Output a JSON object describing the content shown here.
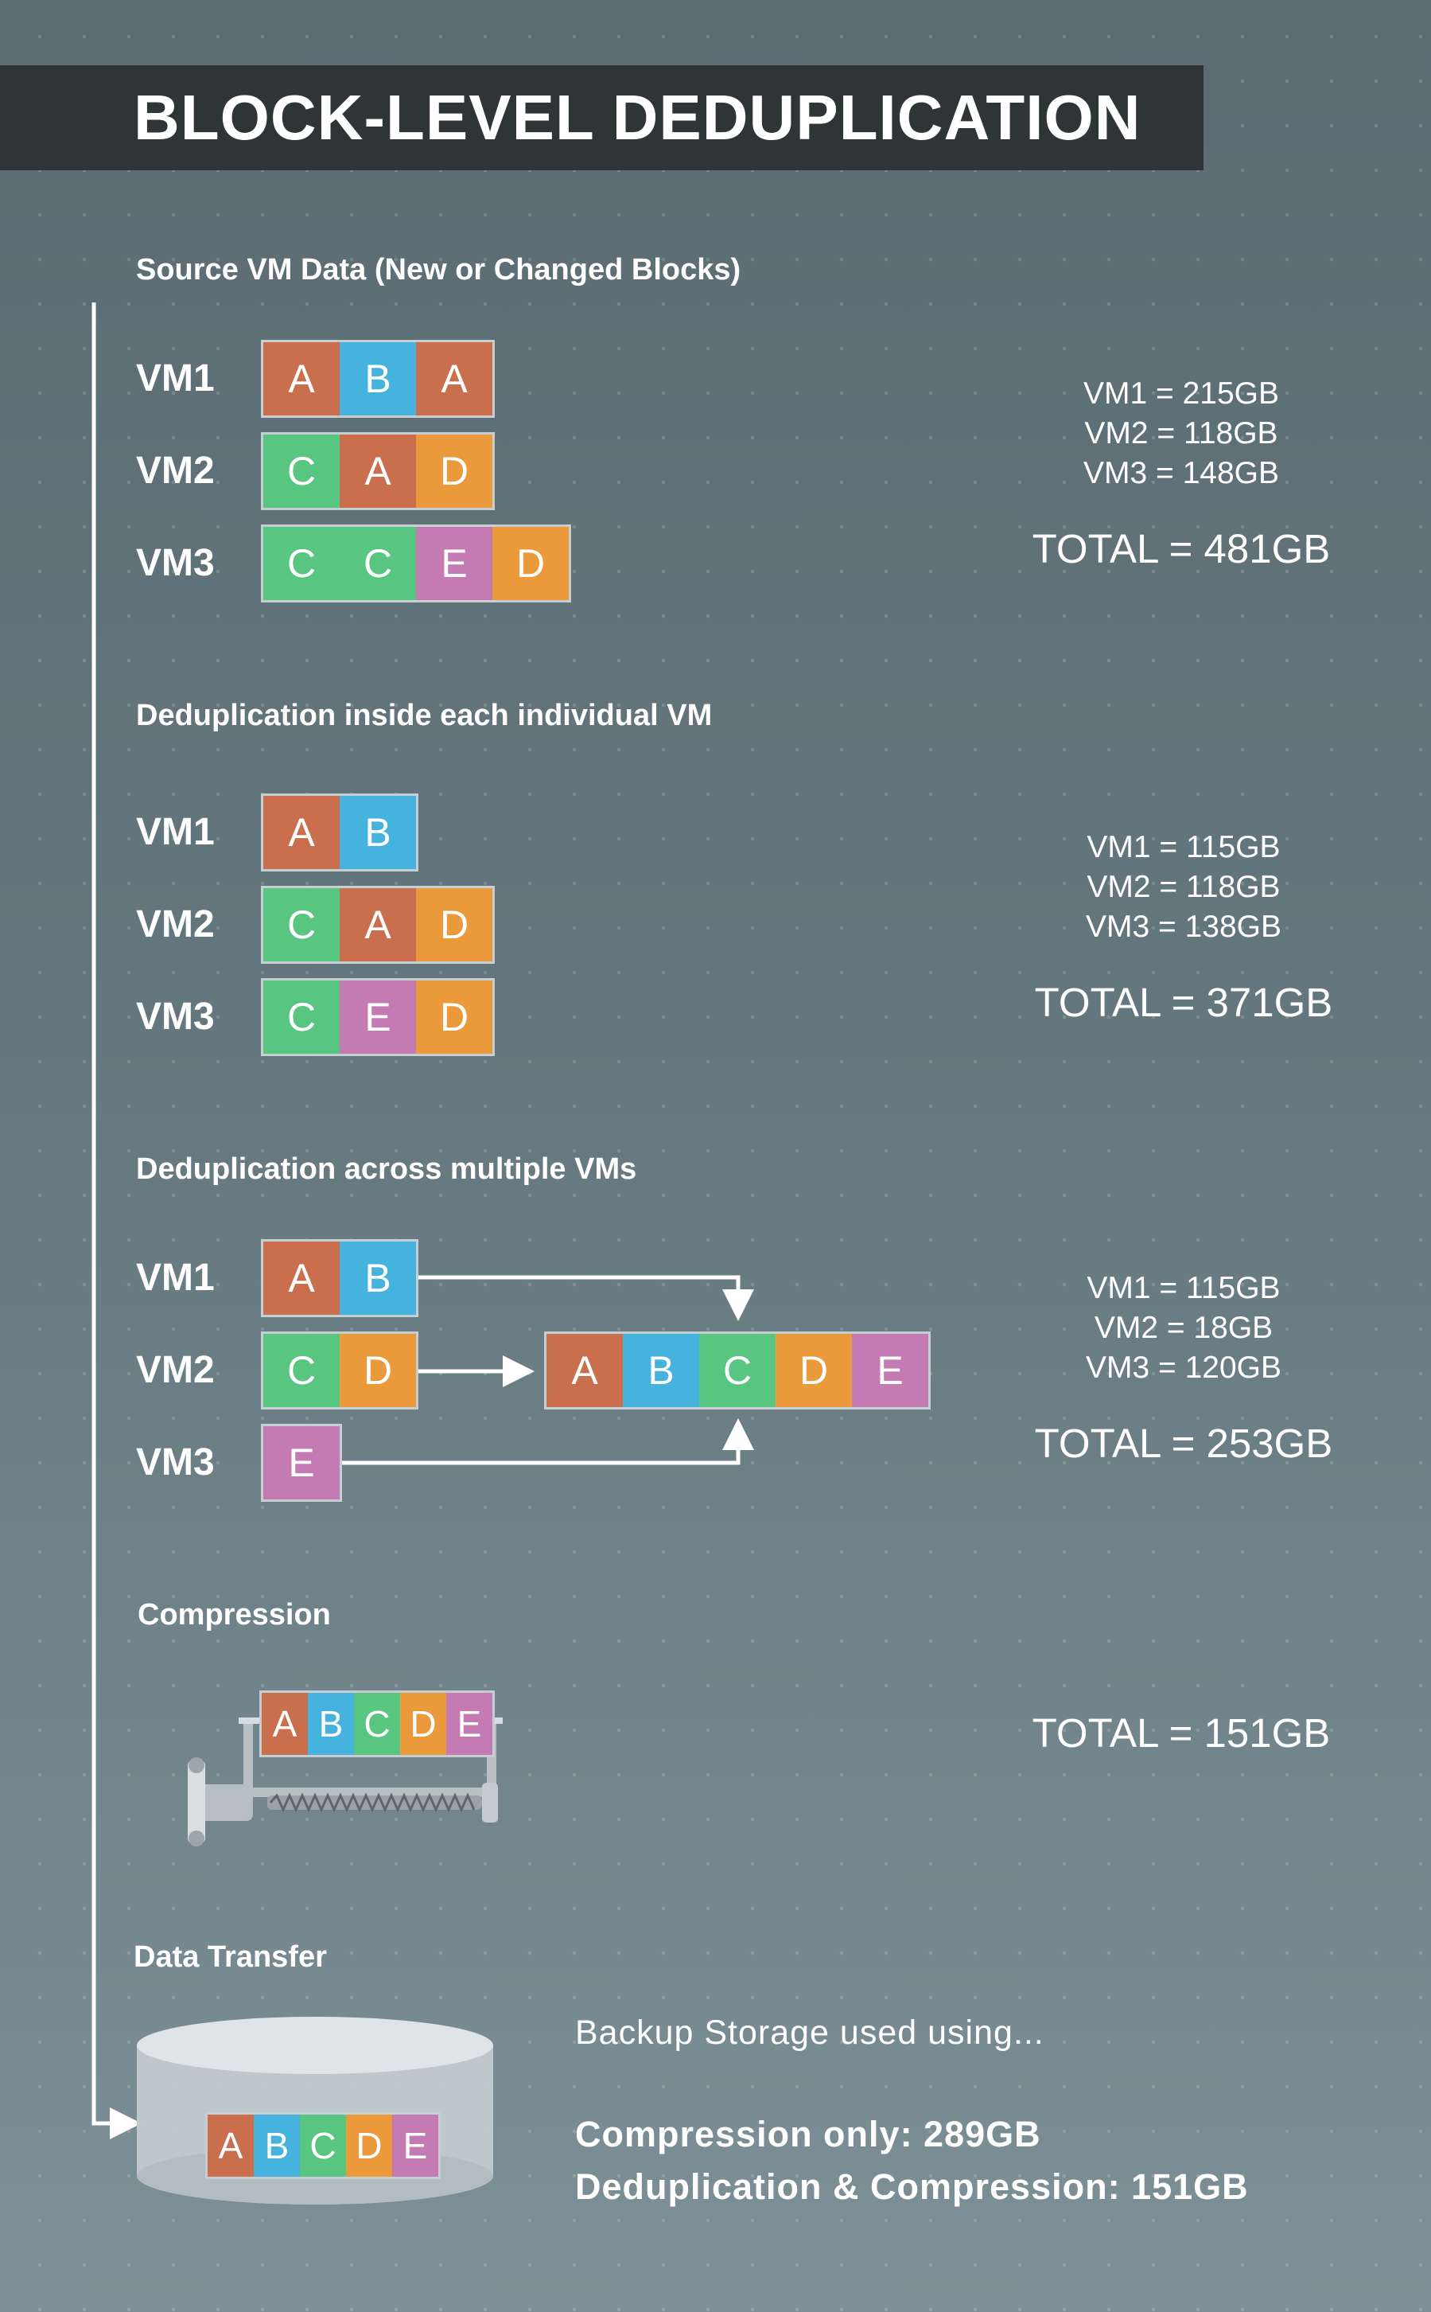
{
  "title": "BLOCK-LEVEL DEDUPLICATION",
  "colors": {
    "A": "#c96f4d",
    "B": "#46b3de",
    "C": "#58c581",
    "D": "#eb9a3b",
    "E": "#c47ab3"
  },
  "sections": [
    {
      "title": "Source VM Data (New or Changed Blocks)",
      "rows": [
        {
          "label": "VM1",
          "blocks": [
            "A",
            "B",
            "A"
          ]
        },
        {
          "label": "VM2",
          "blocks": [
            "C",
            "A",
            "D"
          ]
        },
        {
          "label": "VM3",
          "blocks": [
            "C",
            "C",
            "E",
            "D"
          ]
        }
      ],
      "stats": [
        "VM1 = 215GB",
        "VM2 = 118GB",
        "VM3 = 148GB"
      ],
      "total": "TOTAL = 481GB"
    },
    {
      "title": "Deduplication inside each individual VM",
      "rows": [
        {
          "label": "VM1",
          "blocks": [
            "A",
            "B"
          ]
        },
        {
          "label": "VM2",
          "blocks": [
            "C",
            "A",
            "D"
          ]
        },
        {
          "label": "VM3",
          "blocks": [
            "C",
            "E",
            "D"
          ]
        }
      ],
      "stats": [
        "VM1 = 115GB",
        "VM2 = 118GB",
        "VM3 = 138GB"
      ],
      "total": "TOTAL = 371GB"
    },
    {
      "title": "Deduplication across multiple VMs",
      "rows": [
        {
          "label": "VM1",
          "blocks": [
            "A",
            "B"
          ]
        },
        {
          "label": "VM2",
          "blocks": [
            "C",
            "D"
          ]
        },
        {
          "label": "VM3",
          "blocks": [
            "E"
          ]
        }
      ],
      "merged": [
        "A",
        "B",
        "C",
        "D",
        "E"
      ],
      "stats": [
        "VM1 = 115GB",
        "VM2 = 18GB",
        "VM3 = 120GB"
      ],
      "total": "TOTAL = 253GB"
    },
    {
      "title": "Compression",
      "blocks": [
        "A",
        "B",
        "C",
        "D",
        "E"
      ],
      "total": "TOTAL = 151GB"
    },
    {
      "title": "Data Transfer",
      "blocks": [
        "A",
        "B",
        "C",
        "D",
        "E"
      ],
      "caption": "Backup Storage used using...",
      "line1": "Compression only: 289GB",
      "line2": "Deduplication & Compression: 151GB"
    }
  ]
}
